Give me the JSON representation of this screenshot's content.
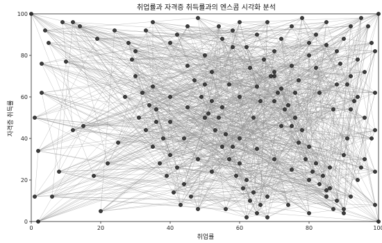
{
  "chart_data": {
    "type": "scatter",
    "title": "취업률과 자격증 취득률과의 엔스콤 시각화 분석",
    "xlabel": "취업률",
    "ylabel": "자격증 취득률",
    "xlim": [
      0,
      100
    ],
    "ylim": [
      0,
      100
    ],
    "x_ticks": [
      "0",
      "20",
      "40",
      "60",
      "80",
      "100"
    ],
    "y_ticks": [
      "0",
      "20",
      "40",
      "60",
      "80",
      "100"
    ],
    "grid": false,
    "legend": "none",
    "point_color": "#3d3d3d",
    "point_edge_color": "#111111",
    "line_color": "#8c8c8c",
    "series": [
      {
        "points": [
          [
            10,
            77
          ],
          [
            5,
            86
          ],
          [
            4,
            92
          ],
          [
            12,
            96
          ],
          [
            19,
            88
          ],
          [
            2,
            0
          ],
          [
            3,
            76
          ],
          [
            20,
            5
          ],
          [
            28,
            86
          ],
          [
            30,
            82
          ],
          [
            33,
            92
          ],
          [
            35,
            96
          ],
          [
            40,
            86
          ],
          [
            42,
            90
          ],
          [
            45,
            94
          ],
          [
            48,
            98
          ],
          [
            50,
            80
          ],
          [
            52,
            72
          ],
          [
            55,
            88
          ],
          [
            58,
            92
          ],
          [
            60,
            96
          ],
          [
            62,
            84
          ],
          [
            65,
            90
          ],
          [
            68,
            96
          ],
          [
            70,
            82
          ],
          [
            72,
            88
          ],
          [
            75,
            94
          ],
          [
            78,
            98
          ],
          [
            80,
            86
          ],
          [
            82,
            90
          ],
          [
            85,
            96
          ],
          [
            88,
            82
          ],
          [
            90,
            88
          ],
          [
            92,
            94
          ],
          [
            95,
            98
          ],
          [
            98,
            86
          ],
          [
            30,
            70
          ],
          [
            32,
            62
          ],
          [
            34,
            56
          ],
          [
            36,
            48
          ],
          [
            38,
            40
          ],
          [
            40,
            32
          ],
          [
            42,
            26
          ],
          [
            44,
            18
          ],
          [
            46,
            12
          ],
          [
            48,
            6
          ],
          [
            50,
            66
          ],
          [
            52,
            58
          ],
          [
            54,
            50
          ],
          [
            56,
            42
          ],
          [
            58,
            36
          ],
          [
            60,
            28
          ],
          [
            62,
            20
          ],
          [
            64,
            14
          ],
          [
            66,
            8
          ],
          [
            68,
            2
          ],
          [
            70,
            72
          ],
          [
            72,
            64
          ],
          [
            74,
            56
          ],
          [
            76,
            50
          ],
          [
            78,
            44
          ],
          [
            80,
            36
          ],
          [
            82,
            28
          ],
          [
            84,
            22
          ],
          [
            86,
            16
          ],
          [
            88,
            10
          ],
          [
            90,
            4
          ],
          [
            92,
            70
          ],
          [
            94,
            60
          ],
          [
            96,
            50
          ],
          [
            98,
            40
          ],
          [
            96,
            30
          ],
          [
            94,
            20
          ],
          [
            92,
            12
          ],
          [
            90,
            6
          ],
          [
            45,
            75
          ],
          [
            47,
            68
          ],
          [
            49,
            60
          ],
          [
            51,
            52
          ],
          [
            53,
            44
          ],
          [
            55,
            36
          ],
          [
            57,
            30
          ],
          [
            59,
            22
          ],
          [
            61,
            16
          ],
          [
            63,
            10
          ],
          [
            65,
            4
          ],
          [
            67,
            78
          ],
          [
            69,
            70
          ],
          [
            71,
            62
          ],
          [
            73,
            54
          ],
          [
            75,
            46
          ],
          [
            77,
            38
          ],
          [
            79,
            30
          ],
          [
            81,
            24
          ],
          [
            83,
            18
          ],
          [
            85,
            12
          ],
          [
            87,
            6
          ],
          [
            89,
            76
          ],
          [
            91,
            66
          ],
          [
            93,
            58
          ],
          [
            29,
            78
          ],
          [
            31,
            50
          ],
          [
            33,
            44
          ],
          [
            35,
            36
          ],
          [
            37,
            28
          ],
          [
            39,
            22
          ],
          [
            41,
            14
          ],
          [
            43,
            8
          ],
          [
            27,
            60
          ],
          [
            25,
            38
          ],
          [
            22,
            28
          ],
          [
            18,
            22
          ],
          [
            15,
            46
          ],
          [
            12,
            44
          ],
          [
            8,
            24
          ],
          [
            6,
            12
          ],
          [
            1,
            50
          ],
          [
            0,
            100
          ],
          [
            100,
            100
          ],
          [
            100,
            0
          ],
          [
            50,
            50
          ],
          [
            55,
            55
          ],
          [
            60,
            60
          ],
          [
            65,
            65
          ],
          [
            70,
            70
          ],
          [
            75,
            75
          ],
          [
            80,
            80
          ],
          [
            85,
            85
          ],
          [
            60,
            40
          ],
          [
            65,
            35
          ],
          [
            70,
            30
          ],
          [
            75,
            25
          ],
          [
            80,
            20
          ],
          [
            85,
            15
          ],
          [
            45,
            55
          ],
          [
            40,
            60
          ],
          [
            35,
            65
          ],
          [
            97,
            94
          ],
          [
            99,
            82
          ],
          [
            99,
            62
          ],
          [
            99,
            44
          ],
          [
            99,
            24
          ],
          [
            99,
            8
          ],
          [
            3,
            62
          ],
          [
            2,
            34
          ],
          [
            1,
            12
          ],
          [
            9,
            96
          ],
          [
            14,
            94
          ],
          [
            24,
            92
          ],
          [
            57,
            66
          ],
          [
            63,
            74
          ],
          [
            66,
            58
          ],
          [
            72,
            46
          ],
          [
            77,
            68
          ],
          [
            83,
            62
          ],
          [
            87,
            54
          ],
          [
            91,
            40
          ],
          [
            95,
            26
          ],
          [
            52,
            24
          ],
          [
            48,
            30
          ],
          [
            44,
            40
          ],
          [
            40,
            48
          ],
          [
            36,
            54
          ],
          [
            56,
            6
          ],
          [
            62,
            2
          ],
          [
            68,
            12
          ],
          [
            74,
            8
          ],
          [
            80,
            4
          ],
          [
            86,
            26
          ],
          [
            90,
            32
          ],
          [
            94,
            78
          ],
          [
            58,
            84
          ],
          [
            64,
            50
          ],
          [
            70,
            58
          ],
          [
            76,
            62
          ],
          [
            82,
            74
          ],
          [
            88,
            66
          ],
          [
            92,
            54
          ],
          [
            96,
            72
          ],
          [
            54,
            94
          ]
        ]
      }
    ]
  }
}
